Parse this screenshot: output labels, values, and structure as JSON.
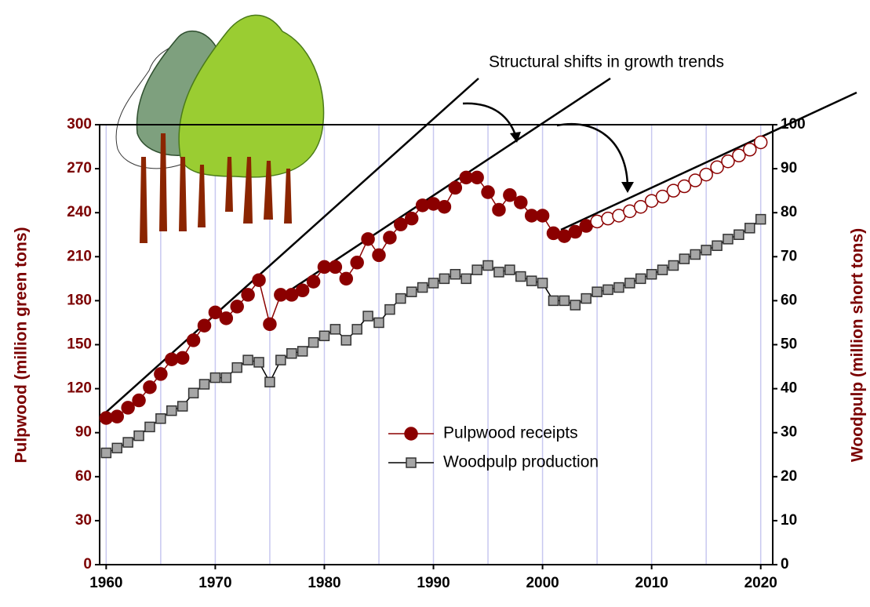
{
  "chart_data": {
    "type": "line",
    "annotation": "Structural shifts in growth trends",
    "y_label": "Pulpwood (million green tons)",
    "y2_label": "Woodpulp (million short tons)",
    "x": [
      1960,
      1961,
      1962,
      1963,
      1964,
      1965,
      1966,
      1967,
      1968,
      1969,
      1970,
      1971,
      1972,
      1973,
      1974,
      1975,
      1976,
      1977,
      1978,
      1979,
      1980,
      1981,
      1982,
      1983,
      1984,
      1985,
      1986,
      1987,
      1988,
      1989,
      1990,
      1991,
      1992,
      1993,
      1994,
      1995,
      1996,
      1997,
      1998,
      1999,
      2000,
      2001,
      2002,
      2003,
      2004,
      2005,
      2006,
      2007,
      2008,
      2009,
      2010,
      2011,
      2012,
      2013,
      2014,
      2015,
      2016,
      2017,
      2018,
      2019,
      2020
    ],
    "series": [
      {
        "name": "Pulpwood receipts",
        "color": "#8b0000",
        "marker": "circle",
        "axis": "y",
        "open_markers_from": 2005,
        "values": [
          100,
          101,
          107,
          112,
          121,
          130,
          140,
          141,
          153,
          163,
          172,
          168,
          176,
          184,
          194,
          164,
          184,
          184,
          187,
          193,
          203,
          203,
          195,
          206,
          222,
          211,
          223,
          232,
          236,
          245,
          246,
          244,
          257,
          264,
          264,
          254,
          242,
          252,
          247,
          238,
          238,
          226,
          224,
          227,
          231,
          234,
          236,
          238,
          241,
          244,
          248,
          251,
          255,
          258,
          262,
          266,
          271,
          275,
          279,
          283,
          288
        ]
      },
      {
        "name": "Woodpulp production",
        "color": "#a6a6a6",
        "marker": "square",
        "axis": "y2",
        "values": [
          25.4,
          26.5,
          27.8,
          29.3,
          31.3,
          33.2,
          35,
          36,
          39,
          41,
          42.5,
          42.5,
          44.8,
          46.5,
          46,
          41.5,
          46.5,
          48,
          48.5,
          50.5,
          52,
          53.5,
          51,
          53.5,
          56.5,
          55,
          58,
          60.5,
          62,
          63,
          64,
          65,
          66,
          65,
          67,
          68,
          66.5,
          67,
          65.5,
          64.5,
          64,
          60,
          60,
          59,
          60.5,
          62,
          62.5,
          63,
          64,
          65,
          66,
          67,
          68,
          69.5,
          70.5,
          71.5,
          72.5,
          74,
          75,
          76.5,
          78.5
        ]
      }
    ],
    "xlim": [
      1959.4,
      2021.1
    ],
    "xticks": [
      1960,
      1970,
      1980,
      1990,
      2000,
      2010,
      2020
    ],
    "xgrid": [
      1960,
      1965,
      1970,
      1975,
      1980,
      1985,
      1990,
      1995,
      2000,
      2005,
      2010,
      2015,
      2020
    ],
    "ylim": [
      0,
      300
    ],
    "yticks": [
      0,
      30,
      60,
      90,
      120,
      150,
      180,
      210,
      240,
      270,
      300
    ],
    "y2lim": [
      0,
      100
    ],
    "y2ticks": [
      0,
      10,
      20,
      30,
      40,
      50,
      60,
      70,
      80,
      90,
      100
    ]
  }
}
